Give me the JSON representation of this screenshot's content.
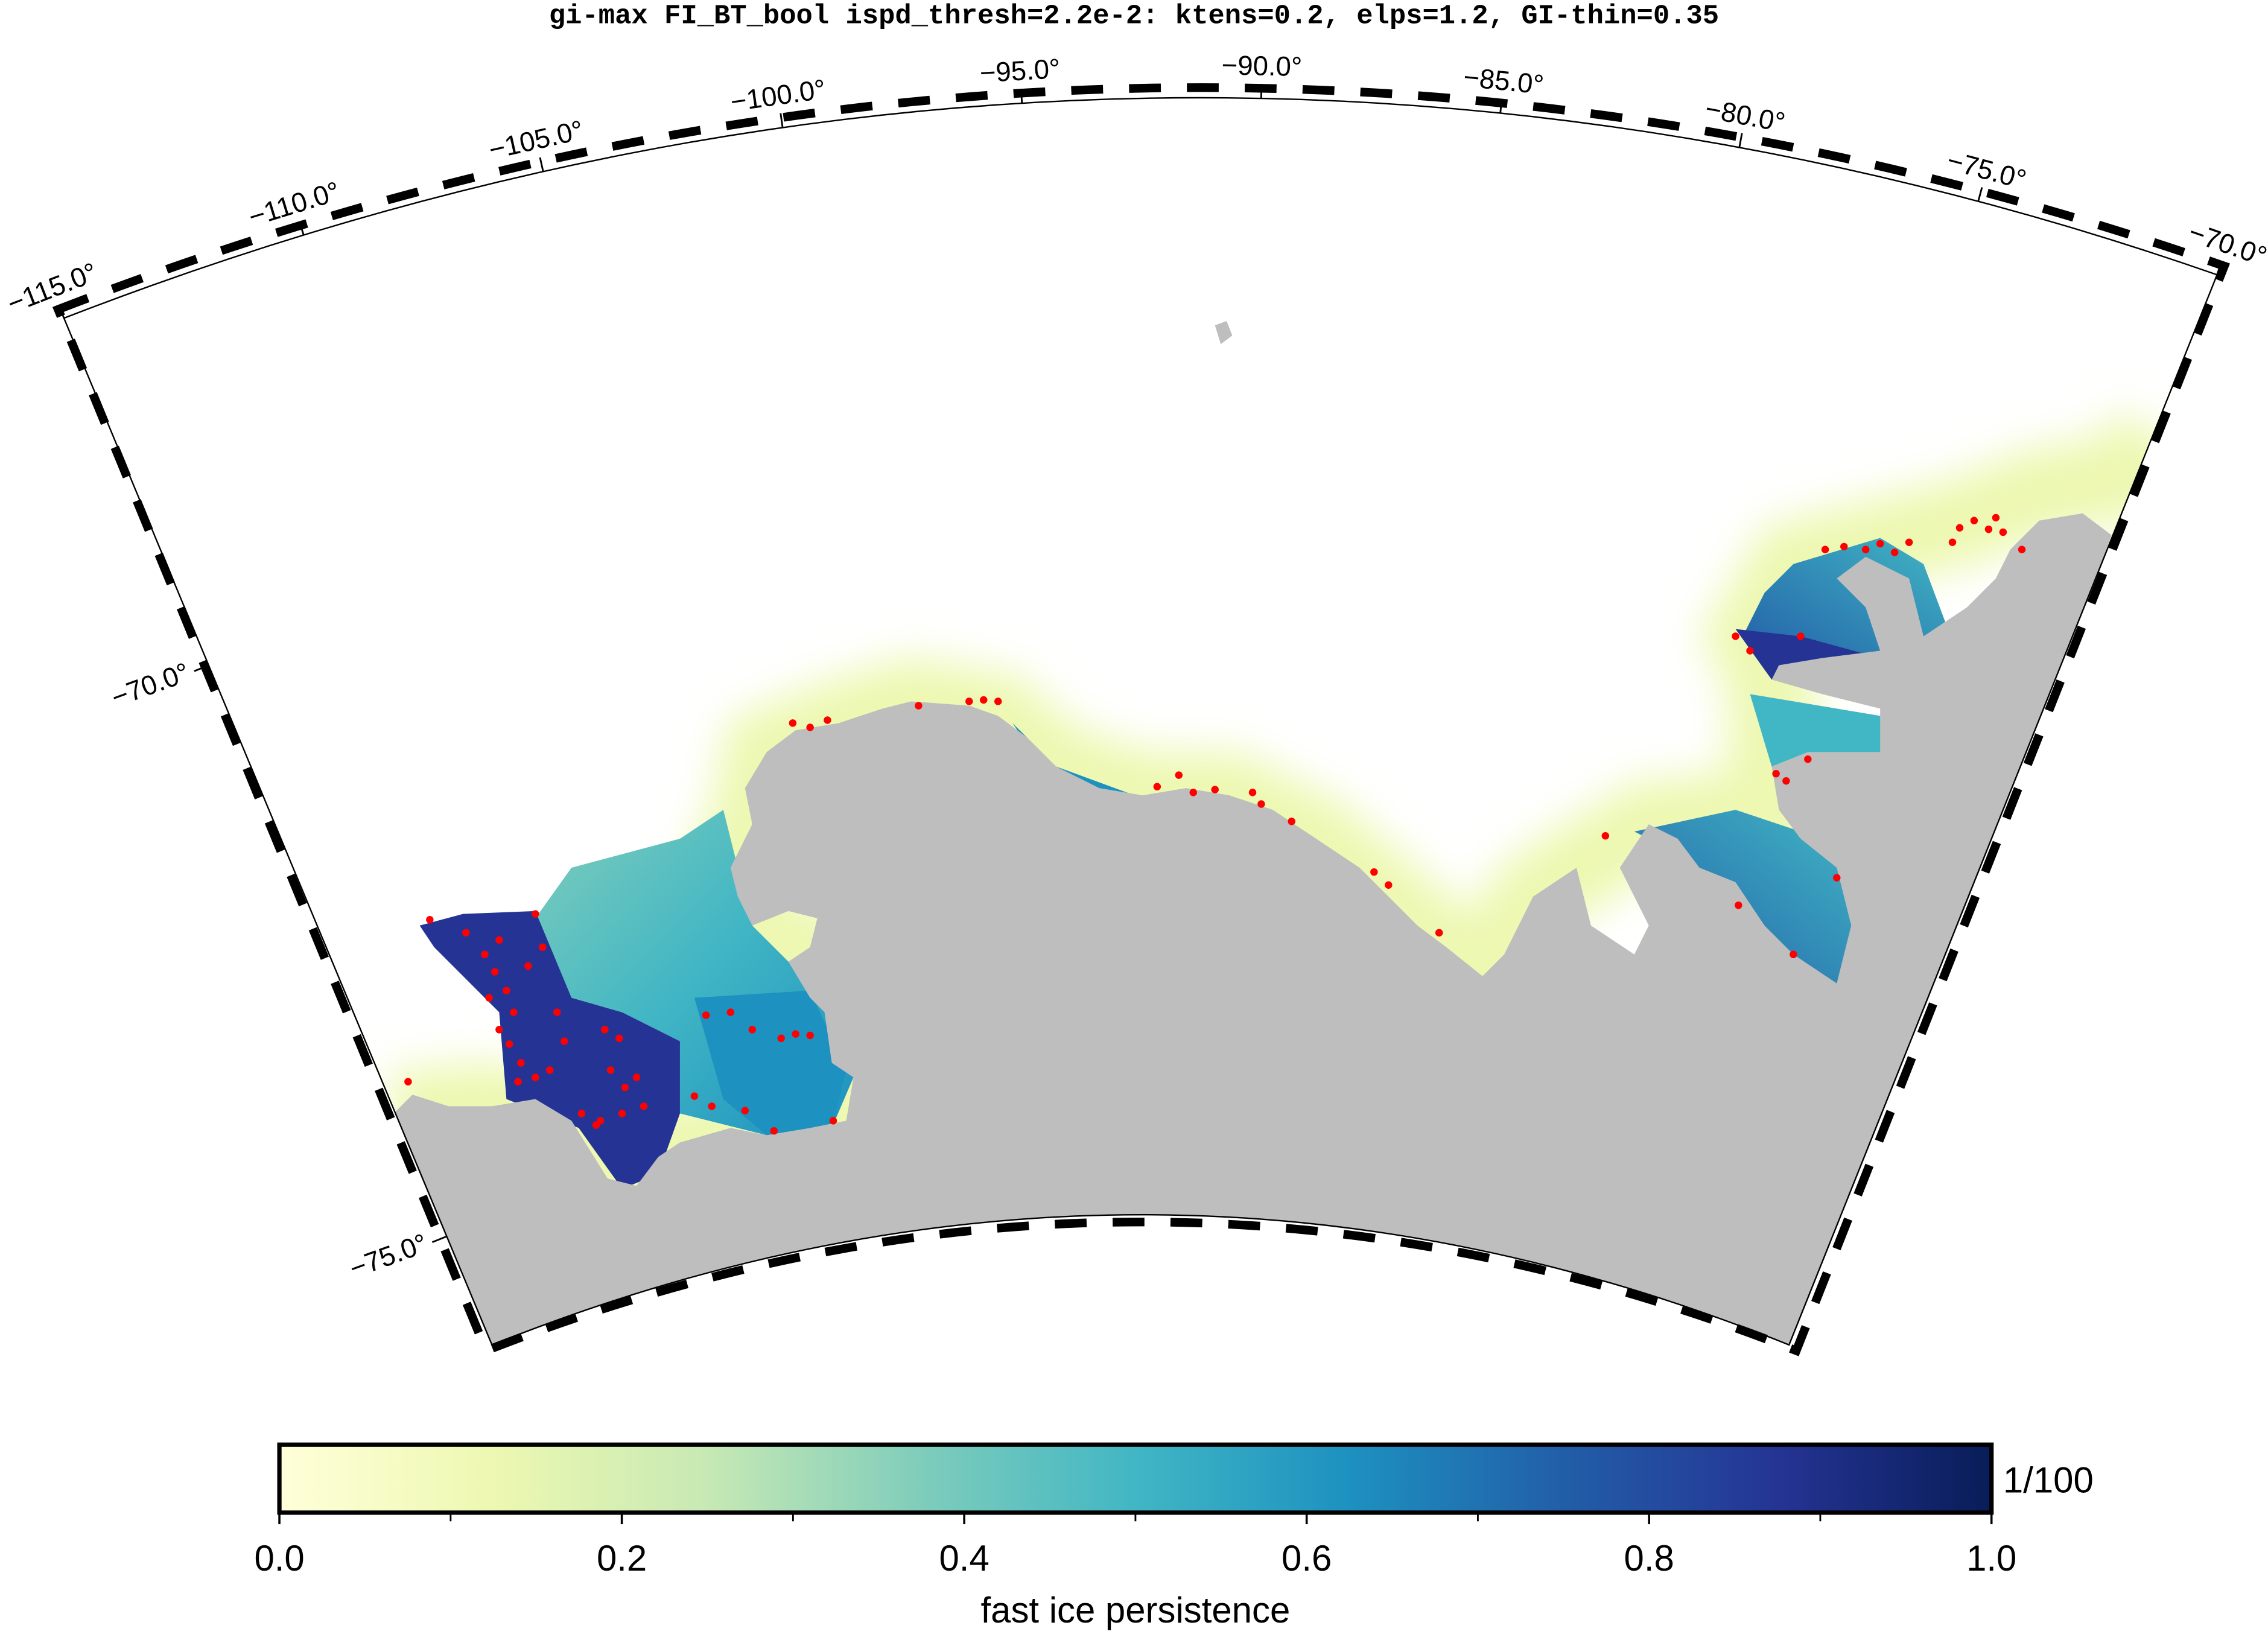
{
  "map": {
    "title": "gi-max FI_BT_bool ispd_thresh=2.2e-2: ktens=0.2, elps=1.2, GI-thin=0.35",
    "lon_range": [
      -115,
      -70
    ],
    "lon_ticks": [
      {
        "value": -115,
        "label": "−115.0°"
      },
      {
        "value": -110,
        "label": "−110.0°"
      },
      {
        "value": -105,
        "label": "−105.0°"
      },
      {
        "value": -100,
        "label": "−100.0°"
      },
      {
        "value": -95,
        "label": "−95.0°"
      },
      {
        "value": -90,
        "label": "−90.0°"
      },
      {
        "value": -85,
        "label": "−85.0°"
      },
      {
        "value": -80,
        "label": "−80.0°"
      },
      {
        "value": -75,
        "label": "−75.0°"
      },
      {
        "value": -70,
        "label": "−70.0°"
      }
    ],
    "lat_ticks": [
      {
        "value": -70,
        "label": "−70.0°"
      },
      {
        "value": -75,
        "label": "−75.0°"
      }
    ],
    "colorbar": {
      "label": "fast ice persistence",
      "unit": "1/100",
      "range": [
        0,
        1
      ],
      "ticks": [
        {
          "value": 0,
          "label": "0.0"
        },
        {
          "value": 0.2,
          "label": "0.2"
        },
        {
          "value": 0.4,
          "label": "0.4"
        },
        {
          "value": 0.6,
          "label": "0.6"
        },
        {
          "value": 0.8,
          "label": "0.8"
        },
        {
          "value": 1,
          "label": "1.0"
        }
      ],
      "minor_ticks": [
        0.1,
        0.3,
        0.5,
        0.7,
        0.9
      ],
      "colors": [
        "#ffffd9",
        "#edf8b1",
        "#c7e9b4",
        "#7fcdbb",
        "#41b6c4",
        "#1d91c0",
        "#225ea8",
        "#253494",
        "#081d58"
      ]
    },
    "land_color": "#bebebe",
    "grounded_iceberg_color": "#ff0000"
  }
}
